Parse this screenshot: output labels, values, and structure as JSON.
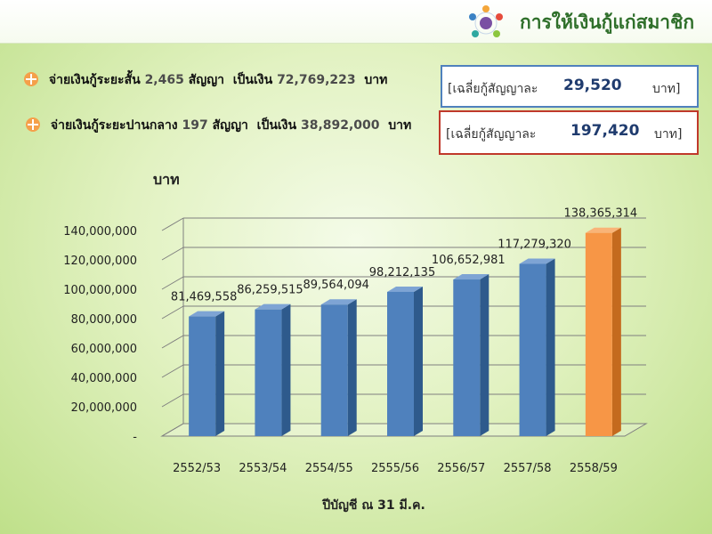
{
  "header": {
    "title": "การให้เงินกู้แก่สมาชิก"
  },
  "summary": {
    "short_term": {
      "label": "จ่ายเงินกู้ระยะสั้น",
      "contracts": "2,465",
      "contracts_unit": "สัญญา",
      "amount_label": "เป็นเงิน",
      "amount": "72,769,223",
      "amount_unit": "บาท",
      "avg_label": "[เฉลี่ยกู้สัญญาละ",
      "avg_value": "29,520",
      "avg_unit": "บาท]"
    },
    "medium_term": {
      "label": "จ่ายเงินกู้ระยะปานกลาง",
      "contracts": "197",
      "contracts_unit": "สัญญา",
      "amount_label": "เป็นเงิน",
      "amount": "38,892,000",
      "amount_unit": "บาท",
      "avg_label": "[เฉลี่ยกู้สัญญาละ",
      "avg_value": "197,420",
      "avg_unit": "บาท]"
    }
  },
  "chart_data": {
    "type": "bar",
    "ylabel": "บาท",
    "xlabel": "ปีบัญชี ณ 31 มี.ค.",
    "categories": [
      "2552/53",
      "2553/54",
      "2554/55",
      "2555/56",
      "2556/57",
      "2557/58",
      "2558/59"
    ],
    "values": [
      81469558,
      86259515,
      89564094,
      98212135,
      106652981,
      117279320,
      138365314
    ],
    "value_labels": [
      "81,469,558",
      "86,259,515",
      "89,564,094",
      "98,212,135",
      "106,652,981",
      "117,279,320",
      "138,365,314"
    ],
    "yticks": [
      "-",
      "20,000,000",
      "40,000,000",
      "60,000,000",
      "80,000,000",
      "100,000,000",
      "120,000,000",
      "140,000,000"
    ],
    "ylim": [
      0,
      140000000
    ],
    "grid": true,
    "colors": {
      "default": "#4f81bd",
      "highlight": "#f79646"
    },
    "highlight_index": 6
  }
}
